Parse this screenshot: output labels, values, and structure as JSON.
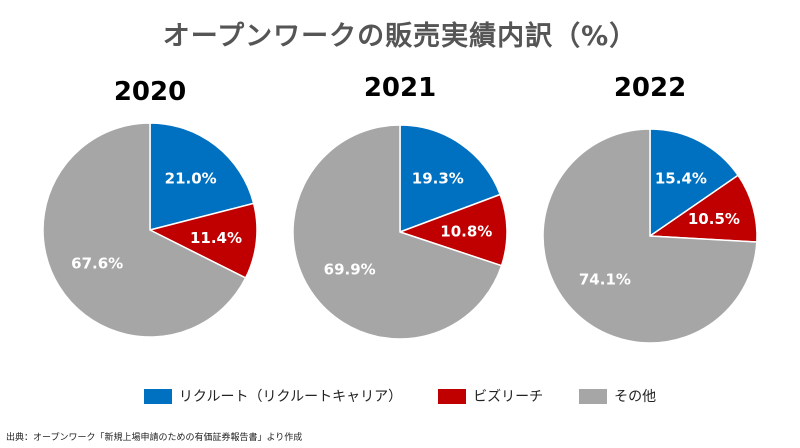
{
  "title": "オープンワークの販売実績内訳（%）",
  "source": "出典：オープンワーク「新規上場申請のための有価証券報告書」より作成",
  "colors": {
    "recruit": "#0070C0",
    "bizreach": "#C00000",
    "other": "#A6A6A6"
  },
  "legend": [
    {
      "label": "リクルート（リクルートキャリア）",
      "color": "#0070C0"
    },
    {
      "label": "ビズリーチ",
      "color": "#C00000"
    },
    {
      "label": "その他",
      "color": "#A6A6A6"
    }
  ],
  "chart_data": [
    {
      "type": "pie",
      "title": "2020",
      "categories": [
        "リクルート（リクルートキャリア）",
        "ビズリーチ",
        "その他"
      ],
      "values": [
        21.0,
        11.4,
        67.6
      ],
      "labels": [
        "21.0%",
        "11.4%",
        "67.6%"
      ]
    },
    {
      "type": "pie",
      "title": "2021",
      "categories": [
        "リクルート（リクルートキャリア）",
        "ビズリーチ",
        "その他"
      ],
      "values": [
        19.3,
        10.8,
        69.9
      ],
      "labels": [
        "19.3%",
        "10.8%",
        "69.9%"
      ]
    },
    {
      "type": "pie",
      "title": "2022",
      "categories": [
        "リクルート（リクルートキャリア）",
        "ビズリーチ",
        "その他"
      ],
      "values": [
        15.4,
        10.5,
        74.1
      ],
      "labels": [
        "15.4%",
        "10.5%",
        "74.1%"
      ]
    }
  ]
}
